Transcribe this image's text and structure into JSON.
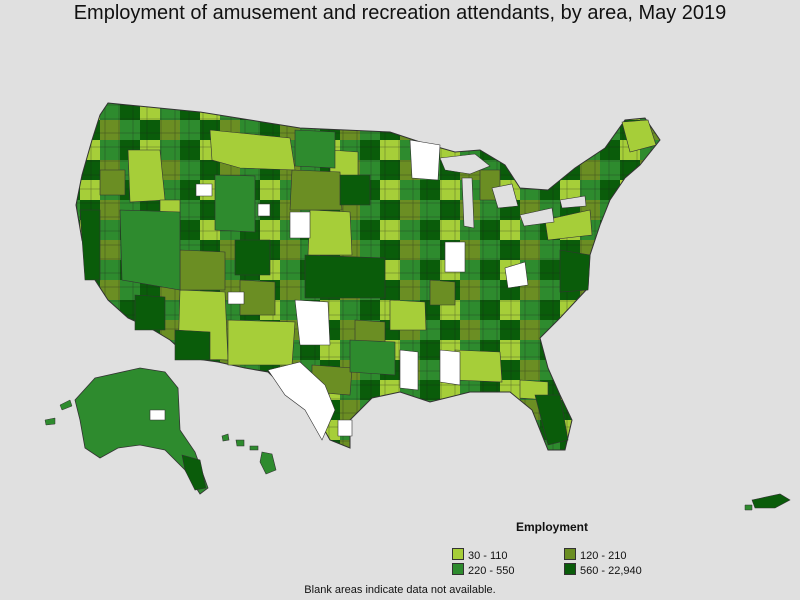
{
  "title": "Employment of amusement and recreation attendants, by area, May 2019",
  "legend": {
    "title": "Employment",
    "items": [
      {
        "label": "30 - 110",
        "color": "#a6ce39"
      },
      {
        "label": "120 - 210",
        "color": "#6b8e23"
      },
      {
        "label": "220 - 550",
        "color": "#2e8b2e"
      },
      {
        "label": "560 - 22,940",
        "color": "#0a5c0a"
      }
    ]
  },
  "footnote": "Blank areas indicate data not available.",
  "colors": {
    "background": "#e0e0e0",
    "no_data": "#ffffff",
    "border": "#333333"
  }
}
